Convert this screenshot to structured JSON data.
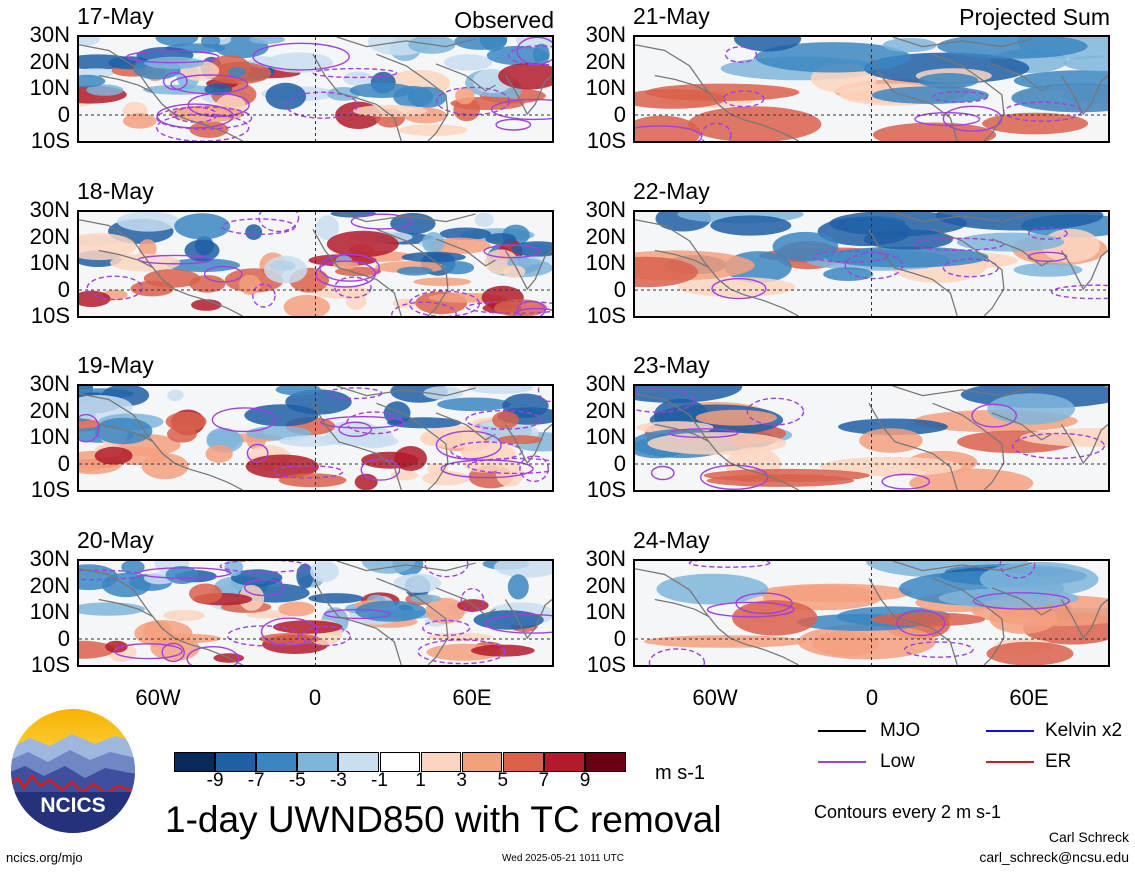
{
  "header": {
    "observed_label": "Observed",
    "projected_label": "Projected Sum"
  },
  "panels_left": [
    {
      "date": "17-May"
    },
    {
      "date": "18-May"
    },
    {
      "date": "19-May"
    },
    {
      "date": "20-May"
    }
  ],
  "panels_right": [
    {
      "date": "21-May"
    },
    {
      "date": "22-May"
    },
    {
      "date": "23-May"
    },
    {
      "date": "24-May"
    }
  ],
  "lat_labels": [
    "30N",
    "20N",
    "10N",
    "0",
    "10S"
  ],
  "lon_labels": [
    "60W",
    "0",
    "60E"
  ],
  "colorbar": {
    "labels": [
      "-9",
      "-7",
      "-5",
      "-3",
      "-1",
      "1",
      "3",
      "5",
      "7",
      "9"
    ],
    "colors": [
      "#0b2a5c",
      "#1f5fa6",
      "#3b86c2",
      "#7fb5da",
      "#c9def0",
      "#ffffff",
      "#fbd5c0",
      "#f3a07f",
      "#d9604b",
      "#b11b2a",
      "#6b0014"
    ],
    "units": "m s-1"
  },
  "title": "1-day UWND850 with TC removal",
  "legend": {
    "mjo": {
      "label": "MJO",
      "color": "#000000"
    },
    "kelvin": {
      "label": "Kelvin x2",
      "color": "#1010e0"
    },
    "low": {
      "label": "Low",
      "color": "#a040e0"
    },
    "er": {
      "label": "ER",
      "color": "#cc2020"
    }
  },
  "contour_note": "Contours every 2 m s-1",
  "author": "Carl Schreck",
  "email": "carl_schreck@ncsu.edu",
  "site": "ncics.org/mjo",
  "timestamp": "Wed 2025-05-21 1011 UTC",
  "logo": {
    "text": "NCICS"
  }
}
